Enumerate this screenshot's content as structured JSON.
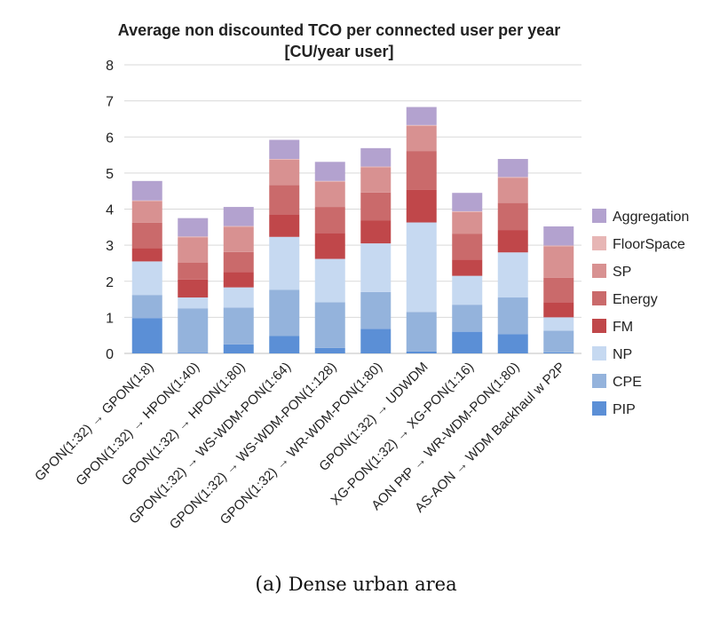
{
  "chart_data": {
    "type": "bar",
    "stacked": true,
    "title": "Average non discounted TCO per connected user per year",
    "subtitle": "[CU/year user]",
    "ylim": [
      0,
      8
    ],
    "yticks": [
      "0",
      "1",
      "2",
      "3",
      "4",
      "5",
      "6",
      "7",
      "8"
    ],
    "grid": true,
    "legend_position": "right",
    "categories": [
      "GPON(1:32) → GPON(1:8)",
      "GPON(1:32) → HPON(1:40)",
      "GPON(1:32) → HPON(1:80)",
      "GPON(1:32) → WS-WDM-PON(1:64)",
      "GPON(1:32) → WS-WDM-PON(1:128)",
      "GPON(1:32) → WR-WDM-PON(1:80)",
      "GPON(1:32) → UDWDM",
      "XG-PON(1:32) → XG-PON(1:16)",
      "AON PtP → WR-WDM-PON(1:80)",
      "AS-AON → WDM Backhaul w P2P"
    ],
    "series": [
      {
        "name": "PIP",
        "color": "#5b8fd6",
        "values": [
          0.98,
          0.02,
          0.25,
          0.48,
          0.15,
          0.68,
          0.05,
          0.6,
          0.53,
          0.03
        ]
      },
      {
        "name": "CPE",
        "color": "#94b3dc",
        "values": [
          0.64,
          1.23,
          1.02,
          1.28,
          1.27,
          1.02,
          1.1,
          0.75,
          1.02,
          0.6
        ]
      },
      {
        "name": "NP",
        "color": "#c6d9f1",
        "values": [
          0.93,
          0.3,
          0.56,
          1.47,
          1.2,
          1.35,
          2.48,
          0.8,
          1.25,
          0.37
        ]
      },
      {
        "name": "FM",
        "color": "#c0474a",
        "values": [
          0.37,
          0.5,
          0.43,
          0.62,
          0.72,
          0.63,
          0.9,
          0.45,
          0.62,
          0.42
        ]
      },
      {
        "name": "Energy",
        "color": "#ca6a6b",
        "values": [
          0.7,
          0.47,
          0.55,
          0.82,
          0.72,
          0.78,
          1.08,
          0.72,
          0.75,
          0.68
        ]
      },
      {
        "name": "SP",
        "color": "#d89191",
        "values": [
          0.6,
          0.7,
          0.7,
          0.7,
          0.7,
          0.7,
          0.7,
          0.6,
          0.7,
          0.87
        ]
      },
      {
        "name": "FloorSpace",
        "color": "#e7b6b5",
        "values": [
          0.02,
          0.02,
          0.02,
          0.02,
          0.02,
          0.02,
          0.02,
          0.02,
          0.02,
          0.02
        ]
      },
      {
        "name": "Aggregation",
        "color": "#b3a2cf",
        "values": [
          0.54,
          0.51,
          0.53,
          0.53,
          0.53,
          0.51,
          0.5,
          0.51,
          0.5,
          0.53
        ]
      }
    ],
    "legend_order": [
      "Aggregation",
      "FloorSpace",
      "SP",
      "Energy",
      "FM",
      "NP",
      "CPE",
      "PIP"
    ]
  },
  "caption": {
    "label": "(a)",
    "text": "Dense urban area"
  }
}
